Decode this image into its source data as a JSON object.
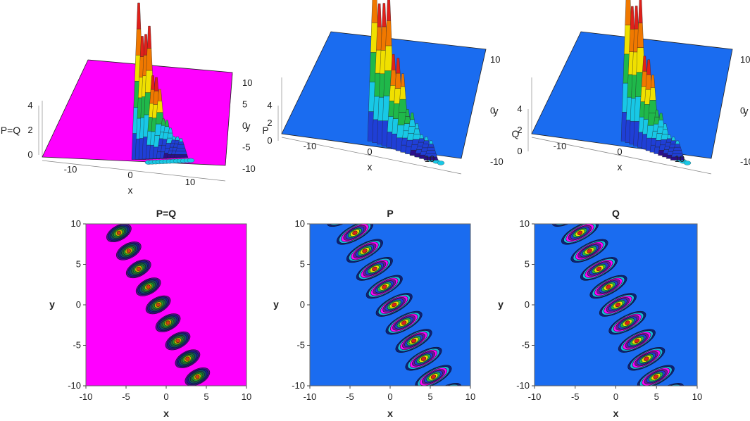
{
  "colors": {
    "magenta": "#ff00ff",
    "blue": "#1a6cf0",
    "dark_blue": "#1b1d8c",
    "purple": "#6a1a9a",
    "cyan": "#18c8e6",
    "green": "#1f9a2a",
    "yellow": "#f0e000",
    "orange": "#f07800",
    "red": "#e0201a"
  },
  "chart_data": [
    {
      "id": "surface-pq",
      "type": "surface3d",
      "zlabel": "P=Q",
      "xlabel": "x",
      "ylabel": "y",
      "xticks": [
        "-10",
        "0",
        "10"
      ],
      "yticks": [
        "10",
        "5",
        "0",
        "-5",
        "-10"
      ],
      "zticks": [
        "0",
        "2",
        "4"
      ],
      "base_color": "magenta",
      "colormap": "rainbow"
    },
    {
      "id": "surface-p",
      "type": "surface3d",
      "zlabel": "P",
      "xlabel": "x",
      "ylabel": "y",
      "xticks": [
        "-10",
        "0",
        "10"
      ],
      "yticks": [
        "10",
        "0",
        "-10"
      ],
      "zticks": [
        "0",
        "2",
        "4"
      ],
      "base_color": "blue",
      "colormap": "rainbow"
    },
    {
      "id": "surface-q",
      "type": "surface3d",
      "zlabel": "Q",
      "xlabel": "x",
      "ylabel": "y",
      "xticks": [
        "-10",
        "0",
        "10"
      ],
      "yticks": [
        "10",
        "0",
        "-10"
      ],
      "zticks": [
        "0",
        "2",
        "4"
      ],
      "base_color": "blue",
      "colormap": "rainbow"
    },
    {
      "id": "contour-pq",
      "type": "contour",
      "title": "P=Q",
      "xlabel": "x",
      "ylabel": "y",
      "xlim": [
        -10,
        10
      ],
      "ylim": [
        -10,
        10
      ],
      "xticks": [
        "-10",
        "-5",
        "0",
        "5",
        "10"
      ],
      "yticks": [
        "10",
        "5",
        "0",
        "-5",
        "-10"
      ],
      "background": "magenta",
      "band": {
        "x_at_y_plus10": -6.5,
        "x_at_y_minus10": 4.5,
        "half_width": 1.6,
        "lobes": 9
      }
    },
    {
      "id": "contour-p",
      "type": "contour",
      "title": "P",
      "xlabel": "x",
      "ylabel": "y",
      "xlim": [
        -10,
        10
      ],
      "ylim": [
        -10,
        10
      ],
      "xticks": [
        "-10",
        "-5",
        "0",
        "5",
        "10"
      ],
      "yticks": [
        "10",
        "5",
        "0",
        "-5",
        "-10"
      ],
      "background": "blue",
      "band": {
        "x_at_y_plus10": -5,
        "x_at_y_minus10": 6,
        "half_width": 2.4,
        "lobes": 9
      }
    },
    {
      "id": "contour-q",
      "type": "contour",
      "title": "Q",
      "xlabel": "x",
      "ylabel": "y",
      "xlim": [
        -10,
        10
      ],
      "ylim": [
        -10,
        10
      ],
      "xticks": [
        "-10",
        "-5",
        "0",
        "5",
        "10"
      ],
      "yticks": [
        "10",
        "5",
        "0",
        "-5",
        "-10"
      ],
      "background": "blue",
      "band": {
        "x_at_y_plus10": -5,
        "x_at_y_minus10": 5.5,
        "half_width": 2.4,
        "lobes": 9
      }
    }
  ]
}
